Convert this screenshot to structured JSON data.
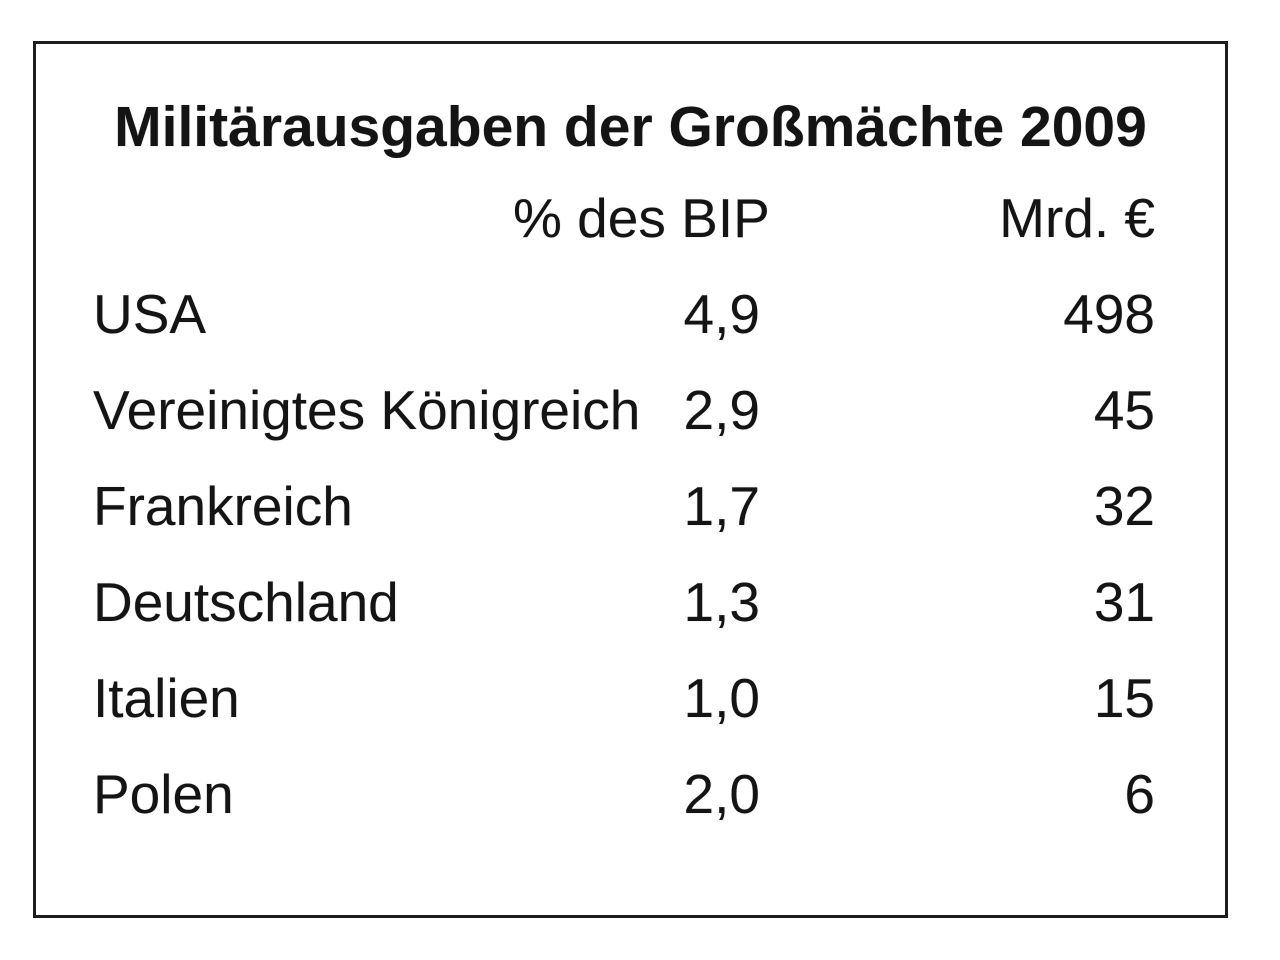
{
  "table": {
    "title": "Militärausgaben der Großmächte 2009",
    "columns": [
      "",
      "% des BIP",
      "Mrd. €"
    ],
    "rows": [
      {
        "country": "USA",
        "pct_bip": "4,9",
        "mrd_eur": "498"
      },
      {
        "country": "Vereinigtes Königreich",
        "pct_bip": "2,9",
        "mrd_eur": "45"
      },
      {
        "country": "Frankreich",
        "pct_bip": "1,7",
        "mrd_eur": "32"
      },
      {
        "country": "Deutschland",
        "pct_bip": "1,3",
        "mrd_eur": "31"
      },
      {
        "country": "Italien",
        "pct_bip": "1,0",
        "mrd_eur": "15"
      },
      {
        "country": "Polen",
        "pct_bip": "2,0",
        "mrd_eur": "6"
      }
    ]
  },
  "chart_data": {
    "type": "table",
    "title": "Militärausgaben der Großmächte 2009",
    "columns": [
      "",
      "% des BIP",
      "Mrd. €"
    ],
    "rows": [
      [
        "USA",
        "4,9",
        498
      ],
      [
        "Vereinigtes Königreich",
        "2,9",
        45
      ],
      [
        "Frankreich",
        "1,7",
        32
      ],
      [
        "Deutschland",
        "1,3",
        31
      ],
      [
        "Italien",
        "1,0",
        15
      ],
      [
        "Polen",
        "2,0",
        6
      ]
    ]
  },
  "colors": {
    "text": "#141414",
    "border": "#1d1d1d",
    "background": "#ffffff"
  }
}
